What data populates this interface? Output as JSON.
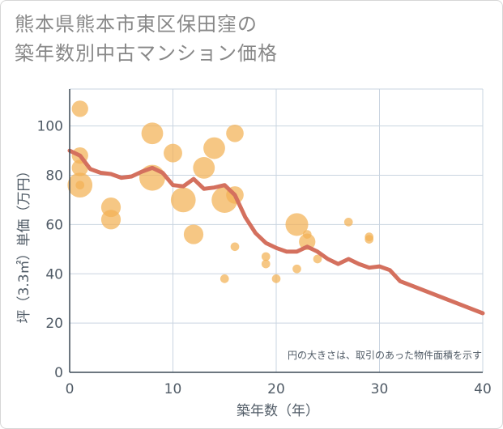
{
  "title_lines": [
    "熊本県熊本市東区保田窪の",
    "築年数別中古マンション価格"
  ],
  "chart_data": {
    "type": "scatter",
    "title": "熊本県熊本市東区保田窪の築年数別中古マンション価格",
    "xlabel": "築年数（年）",
    "ylabel": "坪（3.3㎡）単価（万円）",
    "xlim": [
      0,
      40
    ],
    "ylim": [
      0,
      115
    ],
    "xticks": [
      0,
      10,
      20,
      30,
      40
    ],
    "yticks": [
      0,
      20,
      40,
      60,
      80,
      100
    ],
    "grid": true,
    "note": "円の大きさは、取引のあった物件面積を示す",
    "colors": {
      "bubble": "#f2b155",
      "line": "#d4705e",
      "grid": "#c9d4e0",
      "text": "#505b66"
    },
    "bubbles": [
      {
        "x": 1,
        "y": 107,
        "size": 0.55
      },
      {
        "x": 1,
        "y": 88,
        "size": 0.55
      },
      {
        "x": 1,
        "y": 83,
        "size": 0.55
      },
      {
        "x": 1,
        "y": 76,
        "size": 0.95
      },
      {
        "x": 1,
        "y": 76,
        "size": 0.18
      },
      {
        "x": 4,
        "y": 67,
        "size": 0.7
      },
      {
        "x": 4,
        "y": 62,
        "size": 0.7
      },
      {
        "x": 8,
        "y": 97,
        "size": 0.8
      },
      {
        "x": 8,
        "y": 79,
        "size": 1.0
      },
      {
        "x": 10,
        "y": 89,
        "size": 0.65
      },
      {
        "x": 11,
        "y": 70,
        "size": 0.95
      },
      {
        "x": 12,
        "y": 56,
        "size": 0.7
      },
      {
        "x": 13,
        "y": 83,
        "size": 0.8
      },
      {
        "x": 14,
        "y": 91,
        "size": 0.8
      },
      {
        "x": 15,
        "y": 70,
        "size": 1.0
      },
      {
        "x": 16,
        "y": 97,
        "size": 0.6
      },
      {
        "x": 16,
        "y": 72,
        "size": 0.6
      },
      {
        "x": 15,
        "y": 38,
        "size": 0.18
      },
      {
        "x": 16,
        "y": 51,
        "size": 0.18
      },
      {
        "x": 19,
        "y": 47,
        "size": 0.18
      },
      {
        "x": 19,
        "y": 44,
        "size": 0.18
      },
      {
        "x": 20,
        "y": 38,
        "size": 0.18
      },
      {
        "x": 22,
        "y": 60,
        "size": 0.85
      },
      {
        "x": 22,
        "y": 42,
        "size": 0.18
      },
      {
        "x": 23,
        "y": 53,
        "size": 0.55
      },
      {
        "x": 23,
        "y": 56,
        "size": 0.18
      },
      {
        "x": 24,
        "y": 46,
        "size": 0.18
      },
      {
        "x": 27,
        "y": 61,
        "size": 0.18
      },
      {
        "x": 29,
        "y": 55,
        "size": 0.18
      },
      {
        "x": 29,
        "y": 54,
        "size": 0.18
      }
    ],
    "trend": {
      "x": [
        0,
        1,
        2,
        3,
        4,
        5,
        6,
        7,
        8,
        9,
        10,
        11,
        12,
        13,
        14,
        15,
        16,
        17,
        18,
        19,
        20,
        21,
        22,
        23,
        24,
        25,
        26,
        27,
        28,
        29,
        30,
        31,
        32,
        40
      ],
      "y": [
        90,
        88,
        82.5,
        81,
        80.5,
        79,
        79.5,
        81.5,
        83,
        81,
        76,
        75.5,
        78.5,
        74.5,
        75,
        76,
        72,
        63,
        56.5,
        52.5,
        50.5,
        49,
        49,
        51,
        49,
        46,
        44,
        46,
        44,
        42.5,
        43,
        41.5,
        37,
        24
      ]
    }
  }
}
